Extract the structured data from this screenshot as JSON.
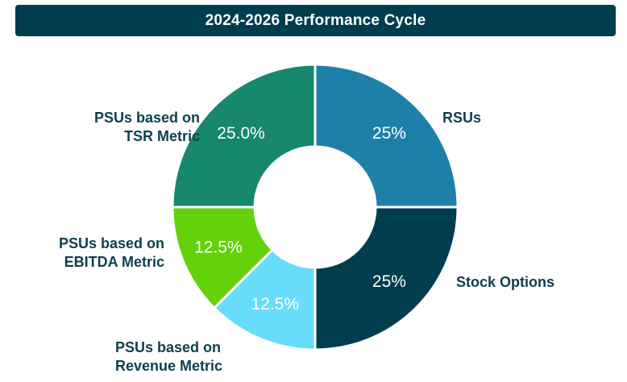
{
  "title": "2024-2026 Performance Cycle",
  "chart_data": {
    "type": "pie",
    "donut": true,
    "title": "2024-2026 Performance Cycle",
    "slices": [
      {
        "label": [
          "RSUs"
        ],
        "value": 25,
        "display": "25%",
        "color": "#1e80a8",
        "value_color": "#ffffff"
      },
      {
        "label": [
          "Stock Options"
        ],
        "value": 25,
        "display": "25%",
        "color": "#003d4f",
        "value_color": "#ffffff"
      },
      {
        "label": [
          "PSUs based on",
          "Revenue Metric"
        ],
        "value": 12.5,
        "display": "12.5%",
        "color": "#67dcfb",
        "value_color": "#ffffff"
      },
      {
        "label": [
          "PSUs based on",
          "EBITDA Metric"
        ],
        "value": 12.5,
        "display": "12.5%",
        "color": "#63d20a",
        "value_color": "#ffffff"
      },
      {
        "label": [
          "PSUs based on",
          "TSR Metric"
        ],
        "value": 25.0,
        "display": "25.0%",
        "color": "#17876e",
        "value_color": "#ffffff"
      }
    ]
  }
}
